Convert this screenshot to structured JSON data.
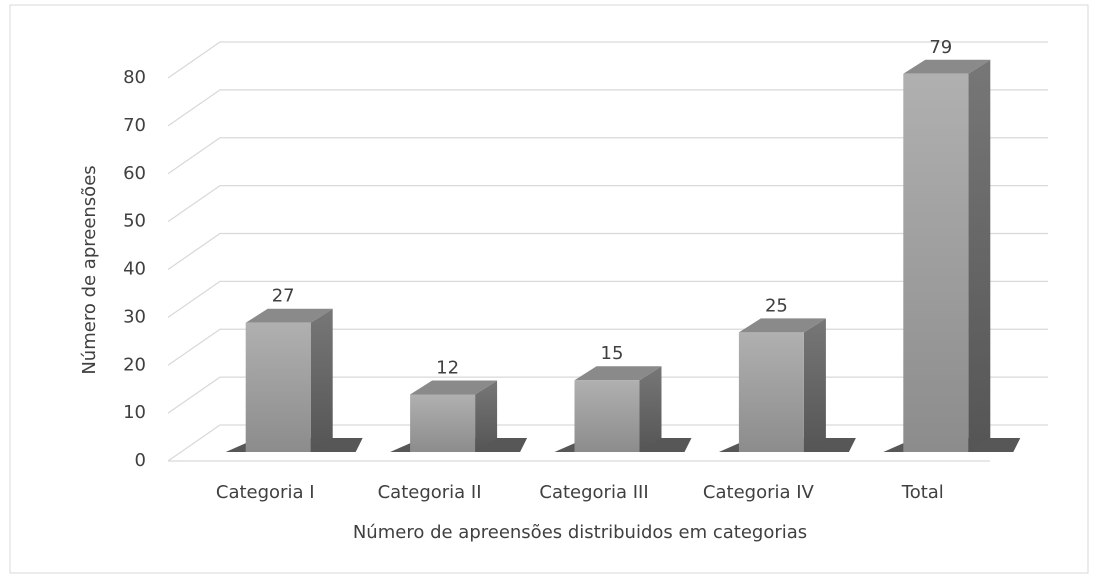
{
  "chart_data": {
    "type": "bar3d",
    "x_label": "Número de apreensões distribuidos em categorias",
    "y_label": "Número de apreensões",
    "categories": [
      "Categoria I",
      "Categoria II",
      "Categoria III",
      "Categoria IV",
      "Total"
    ],
    "values": [
      27,
      12,
      15,
      25,
      79
    ],
    "color": "#a6a6a6",
    "ylim": [
      0,
      80
    ],
    "yticks": [
      0,
      10,
      20,
      30,
      40,
      50,
      60,
      70,
      80
    ],
    "grid": true
  }
}
